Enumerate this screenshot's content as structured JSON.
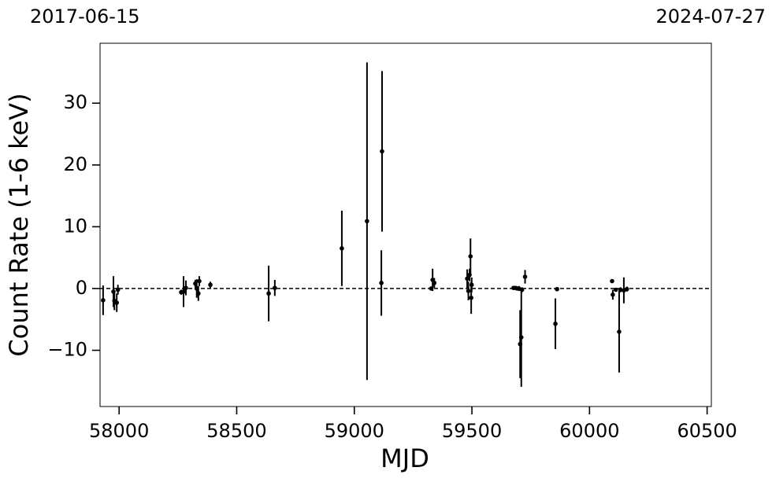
{
  "chart_data": {
    "type": "errorbar",
    "xlabel": "MJD",
    "ylabel": "Count Rate (1-6 keV)",
    "xlim_labels": [
      "2017-06-15",
      "2024-07-27"
    ],
    "xlim": [
      57919,
      60518
    ],
    "ylim": [
      -19.1,
      39.7
    ],
    "xticks": [
      58000,
      58500,
      59000,
      59500,
      60000,
      60500
    ],
    "yticks": [
      {
        "value": -10,
        "label": "−10"
      },
      0,
      10,
      20,
      30
    ],
    "hline": 0,
    "color": "#000000",
    "x": [
      57932,
      57976,
      57980,
      57990,
      57995,
      58264,
      58274,
      58284,
      58324,
      58330,
      58337,
      58341,
      58388,
      58636,
      58662,
      58947,
      59054,
      59115,
      59118,
      59327,
      59333,
      59340,
      59480,
      59485,
      59490,
      59494,
      59497,
      59499,
      59677,
      59685,
      59692,
      59700,
      59705,
      59710,
      59713,
      59726,
      59855,
      59862,
      60096,
      60099,
      60112,
      60126,
      60132,
      60146,
      60159
    ],
    "values": [
      -1.9,
      -0.5,
      -2.0,
      -2.3,
      -0.2,
      -0.6,
      -0.5,
      0.1,
      0.8,
      0.0,
      -0.8,
      1.2,
      0.6,
      -0.8,
      0.1,
      6.5,
      10.9,
      0.9,
      22.2,
      0.0,
      1.4,
      0.9,
      1.6,
      -0.4,
      2.2,
      5.2,
      -1.5,
      0.6,
      0.1,
      0.1,
      0.0,
      0.0,
      -9.0,
      -7.9,
      -0.2,
      1.9,
      -5.7,
      -0.1,
      1.2,
      -1.0,
      -0.2,
      -7.0,
      -0.2,
      -0.3,
      -0.1
    ],
    "errors": [
      2.4,
      2.5,
      1.5,
      1.5,
      0.8,
      0.4,
      2.5,
      1.2,
      0.6,
      1.5,
      1.2,
      0.8,
      0.5,
      4.5,
      1.3,
      6.1,
      25.7,
      5.3,
      13.0,
      0.3,
      1.8,
      0.8,
      1.5,
      1.5,
      1.0,
      2.9,
      2.6,
      1.2,
      0.3,
      0.3,
      0.3,
      0.4,
      5.5,
      8.0,
      0.4,
      1.1,
      4.1,
      0.3,
      0.3,
      0.8,
      0.3,
      6.6,
      0.4,
      2.1,
      0.4
    ]
  }
}
